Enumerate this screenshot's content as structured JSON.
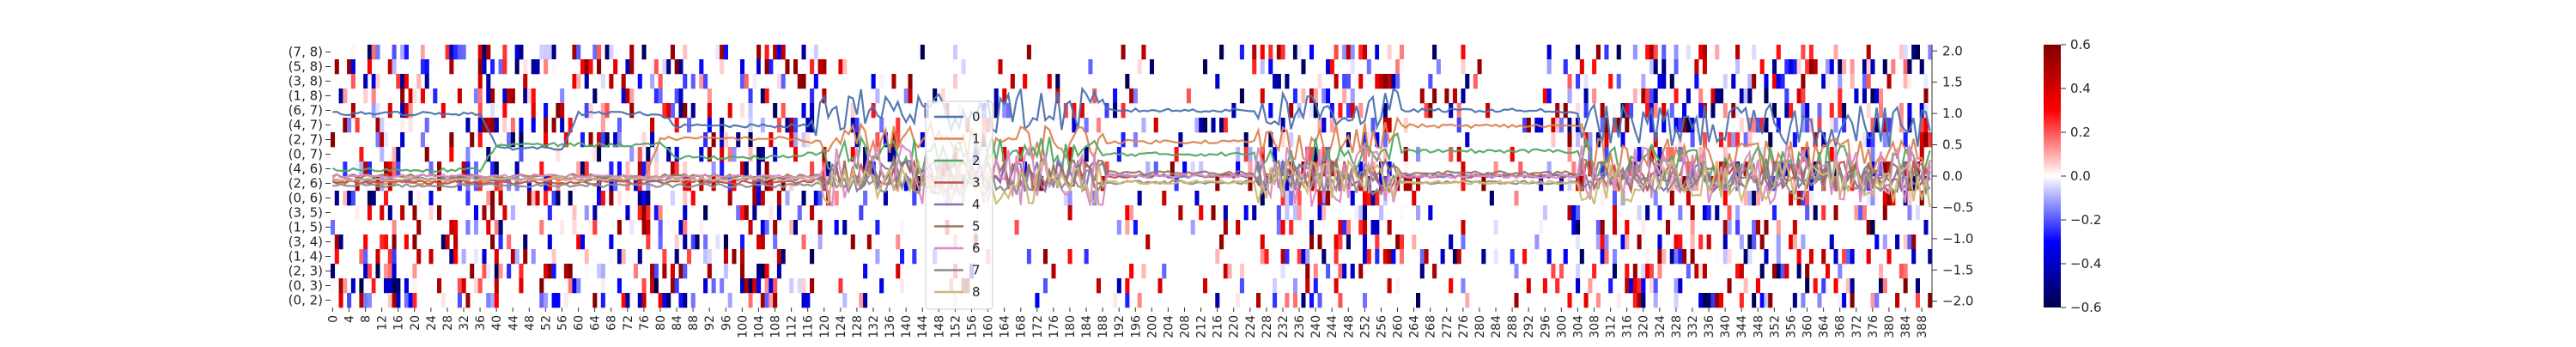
{
  "chart_data": {
    "type": "heatmap",
    "title": "",
    "xlabel": "",
    "ylabel": "",
    "row_labels": [
      "(7, 8)",
      "(5, 8)",
      "(3, 8)",
      "(1, 8)",
      "(6, 7)",
      "(4, 7)",
      "(2, 7)",
      "(0, 7)",
      "(4, 6)",
      "(2, 6)",
      "(0, 6)",
      "(3, 5)",
      "(1, 5)",
      "(3, 4)",
      "(1, 4)",
      "(2, 3)",
      "(0, 3)",
      "(0, 2)"
    ],
    "x_tick_labels": [
      "0",
      "4",
      "8",
      "12",
      "16",
      "20",
      "24",
      "28",
      "32",
      "36",
      "40",
      "44",
      "48",
      "52",
      "56",
      "60",
      "64",
      "68",
      "72",
      "76",
      "80",
      "84",
      "88",
      "92",
      "96",
      "100",
      "104",
      "108",
      "112",
      "116",
      "120",
      "124",
      "128",
      "132",
      "136",
      "140",
      "144",
      "148",
      "152",
      "156",
      "160",
      "164",
      "168",
      "172",
      "176",
      "180",
      "184",
      "188",
      "192",
      "196",
      "200",
      "204",
      "208",
      "212",
      "216",
      "220",
      "224",
      "228",
      "232",
      "236",
      "240",
      "244",
      "248",
      "252",
      "256",
      "260",
      "264",
      "268",
      "272",
      "276",
      "280",
      "284",
      "288",
      "292",
      "296",
      "300",
      "304",
      "308",
      "312",
      "316",
      "320",
      "324",
      "328",
      "332",
      "336",
      "340",
      "344",
      "348",
      "352",
      "356",
      "360",
      "364",
      "368",
      "372",
      "376",
      "380",
      "384",
      "388"
    ],
    "n_columns": 391,
    "colorbar": {
      "range": [
        -0.6,
        0.6
      ],
      "tick_labels": [
        "0.6",
        "0.4",
        "0.2",
        "0.0",
        "−0.2",
        "−0.4",
        "−0.6"
      ],
      "colormap": "seismic"
    },
    "secondary_axis": {
      "range": [
        -2.1,
        2.1
      ],
      "tick_labels": [
        "2.0",
        "1.5",
        "1.0",
        "0.5",
        "0.0",
        "−0.5",
        "−1.0",
        "−1.5",
        "−2.0"
      ]
    },
    "legend": {
      "placement": "center",
      "entries": [
        "0",
        "1",
        "2",
        "3",
        "4",
        "5",
        "6",
        "7",
        "8"
      ]
    },
    "series_colors": [
      "#4c72b0",
      "#dd8452",
      "#55a868",
      "#c44e52",
      "#8172b3",
      "#937860",
      "#da8bc3",
      "#8c8c8c",
      "#ccb974"
    ],
    "series": [
      {
        "name": "0",
        "segments": [
          [
            0,
            1.0
          ],
          [
            36,
            1.0
          ],
          [
            40,
            0.45
          ],
          [
            56,
            0.45
          ],
          [
            60,
            1.0
          ],
          [
            80,
            1.0
          ],
          [
            84,
            0.8
          ],
          [
            116,
            0.8
          ],
          [
            120,
            1.05
          ],
          [
            300,
            1.0
          ],
          [
            308,
            0.8
          ]
        ],
        "noisy_after": 118,
        "noise": 0.35
      },
      {
        "name": "1",
        "segments": [
          [
            0,
            -0.1
          ],
          [
            40,
            -0.05
          ],
          [
            80,
            0.6
          ],
          [
            116,
            0.55
          ],
          [
            260,
            0.8
          ],
          [
            308,
            0.3
          ]
        ],
        "noisy_after": 120,
        "noise": 0.3
      },
      {
        "name": "2",
        "segments": [
          [
            0,
            0.1
          ],
          [
            36,
            0.1
          ],
          [
            40,
            0.5
          ],
          [
            56,
            0.5
          ],
          [
            84,
            0.3
          ],
          [
            116,
            0.35
          ],
          [
            260,
            0.4
          ],
          [
            308,
            0.2
          ]
        ],
        "noisy_after": 120,
        "noise": 0.3
      },
      {
        "name": "3",
        "segments": [
          [
            0,
            -0.1
          ],
          [
            120,
            0.0
          ],
          [
            391,
            0.0
          ]
        ],
        "noisy_after": 120,
        "noise": 0.25
      },
      {
        "name": "4",
        "segments": [
          [
            0,
            -0.05
          ],
          [
            120,
            0.0
          ],
          [
            391,
            0.0
          ]
        ],
        "noisy_after": 120,
        "noise": 0.25
      },
      {
        "name": "5",
        "segments": [
          [
            0,
            0.0
          ],
          [
            120,
            0.05
          ],
          [
            391,
            0.0
          ]
        ],
        "noisy_after": 120,
        "noise": 0.25
      },
      {
        "name": "6",
        "segments": [
          [
            0,
            0.0
          ],
          [
            120,
            0.0
          ],
          [
            391,
            0.2
          ]
        ],
        "noisy_after": 120,
        "noise": 0.5
      },
      {
        "name": "7",
        "segments": [
          [
            0,
            -0.15
          ],
          [
            120,
            -0.1
          ],
          [
            391,
            -0.1
          ]
        ],
        "noisy_after": 120,
        "noise": 0.2
      },
      {
        "name": "8",
        "segments": [
          [
            0,
            -0.05
          ],
          [
            120,
            -0.1
          ],
          [
            391,
            -0.2
          ]
        ],
        "noisy_after": 120,
        "noise": 0.35
      }
    ]
  }
}
